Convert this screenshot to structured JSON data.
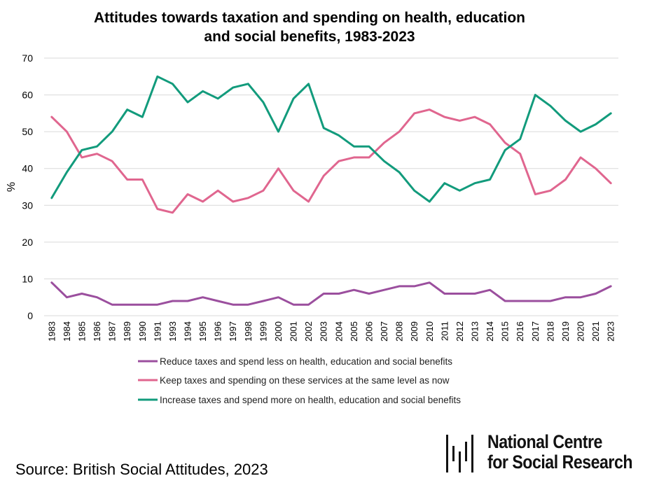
{
  "chart_data": {
    "type": "line",
    "title": [
      "Attitudes towards taxation and spending on health, education",
      "and social benefits, 1983-2023"
    ],
    "ylabel": "%",
    "xlabel": "",
    "ylim": [
      0,
      70
    ],
    "yticks": [
      0,
      10,
      20,
      30,
      40,
      50,
      60,
      70
    ],
    "grid": true,
    "legend_position": "bottom",
    "categories": [
      "1983",
      "1984",
      "1985",
      "1986",
      "1987",
      "1989",
      "1990",
      "1991",
      "1993",
      "1994",
      "1995",
      "1996",
      "1997",
      "1998",
      "1999",
      "2000",
      "2001",
      "2002",
      "2003",
      "2004",
      "2005",
      "2006",
      "2007",
      "2008",
      "2009",
      "2010",
      "2011",
      "2012",
      "2013",
      "2014",
      "2015",
      "2016",
      "2017",
      "2018",
      "2019",
      "2020",
      "2021",
      "2023"
    ],
    "series": [
      {
        "name": "Reduce taxes and spend less on health, education and social benefits",
        "color": "#9b4f9e",
        "values": [
          9,
          5,
          6,
          5,
          3,
          3,
          3,
          3,
          4,
          4,
          5,
          4,
          3,
          3,
          4,
          5,
          3,
          3,
          6,
          6,
          7,
          6,
          7,
          8,
          8,
          9,
          6,
          6,
          6,
          7,
          4,
          4,
          4,
          4,
          5,
          5,
          6,
          8
        ]
      },
      {
        "name": "Keep taxes and spending on these services at the same level as now",
        "color": "#e0668f",
        "values": [
          54,
          50,
          43,
          44,
          42,
          37,
          37,
          29,
          28,
          33,
          31,
          34,
          31,
          32,
          34,
          40,
          34,
          31,
          38,
          42,
          43,
          43,
          47,
          50,
          55,
          56,
          54,
          53,
          54,
          52,
          47,
          44,
          33,
          34,
          37,
          43,
          40,
          36
        ]
      },
      {
        "name": "Increase taxes and spend more on health, education and social benefits",
        "color": "#129b7c",
        "values": [
          32,
          39,
          45,
          46,
          50,
          56,
          54,
          65,
          63,
          58,
          61,
          59,
          62,
          63,
          58,
          50,
          59,
          63,
          51,
          49,
          46,
          46,
          42,
          39,
          34,
          31,
          36,
          34,
          36,
          37,
          45,
          48,
          60,
          57,
          53,
          50,
          52,
          55
        ]
      }
    ]
  },
  "source": "Source: British Social Attitudes, 2023",
  "logo": {
    "line1": "National Centre",
    "line2": "for Social Research"
  }
}
